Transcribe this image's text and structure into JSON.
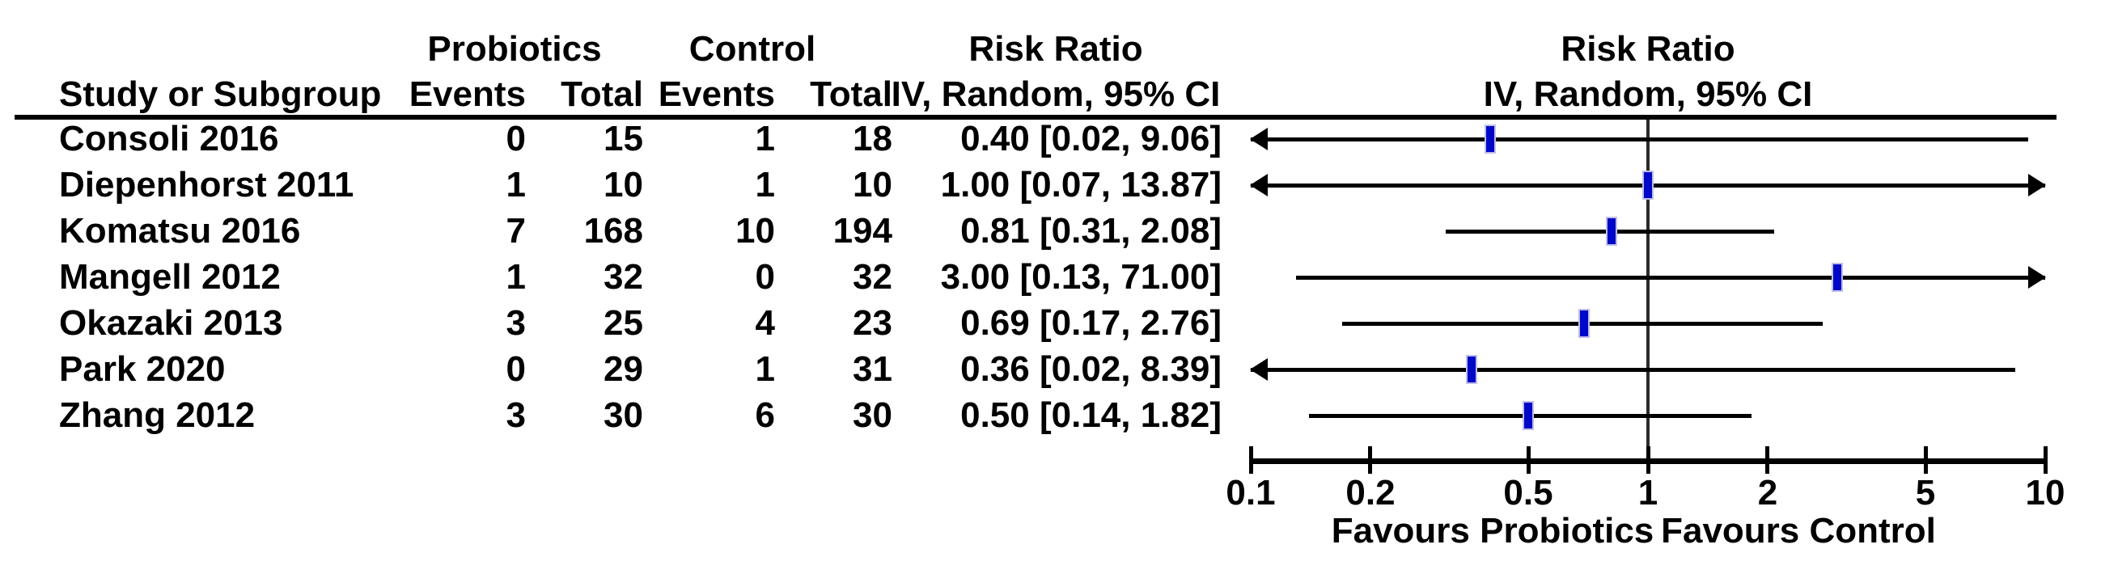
{
  "title_row": {
    "group1": "Probiotics",
    "group2": "Control",
    "risk_ratio": "Risk Ratio"
  },
  "header_row": {
    "study": "Study or Subgroup",
    "events": "Events",
    "total": "Total",
    "method": "IV, Random, 95% CI"
  },
  "chart_data": {
    "type": "forest",
    "effect_measure": "Risk Ratio",
    "model": "IV, Random, 95% CI",
    "x_axis": {
      "scale": "log",
      "min": 0.1,
      "max": 10,
      "ticks": [
        0.1,
        0.2,
        0.5,
        1,
        2,
        5,
        10
      ],
      "tick_labels": [
        "0.1",
        "0.2",
        "0.5",
        "1",
        "2",
        "5",
        "10"
      ]
    },
    "footer": {
      "favours_left": "Favours Probiotics",
      "favours_right": "Favours Control"
    },
    "studies": [
      {
        "study": "Consoli 2016",
        "probiotics_events": "0",
        "probiotics_total": "15",
        "control_events": "1",
        "control_total": "18",
        "rr": 0.4,
        "ci_low": 0.02,
        "ci_high": 9.06,
        "rr_label": "0.40 [0.02, 9.06]"
      },
      {
        "study": "Diepenhorst 2011",
        "probiotics_events": "1",
        "probiotics_total": "10",
        "control_events": "1",
        "control_total": "10",
        "rr": 1.0,
        "ci_low": 0.07,
        "ci_high": 13.87,
        "rr_label": "1.00 [0.07, 13.87]"
      },
      {
        "study": "Komatsu 2016",
        "probiotics_events": "7",
        "probiotics_total": "168",
        "control_events": "10",
        "control_total": "194",
        "rr": 0.81,
        "ci_low": 0.31,
        "ci_high": 2.08,
        "rr_label": "0.81 [0.31, 2.08]"
      },
      {
        "study": "Mangell 2012",
        "probiotics_events": "1",
        "probiotics_total": "32",
        "control_events": "0",
        "control_total": "32",
        "rr": 3.0,
        "ci_low": 0.13,
        "ci_high": 71.0,
        "rr_label": "3.00 [0.13, 71.00]"
      },
      {
        "study": "Okazaki 2013",
        "probiotics_events": "3",
        "probiotics_total": "25",
        "control_events": "4",
        "control_total": "23",
        "rr": 0.69,
        "ci_low": 0.17,
        "ci_high": 2.76,
        "rr_label": "0.69 [0.17, 2.76]"
      },
      {
        "study": "Park 2020",
        "probiotics_events": "0",
        "probiotics_total": "29",
        "control_events": "1",
        "control_total": "31",
        "rr": 0.36,
        "ci_low": 0.02,
        "ci_high": 8.39,
        "rr_label": "0.36 [0.02, 8.39]"
      },
      {
        "study": "Zhang 2012",
        "probiotics_events": "3",
        "probiotics_total": "30",
        "control_events": "6",
        "control_total": "30",
        "rr": 0.5,
        "ci_low": 0.14,
        "ci_high": 1.82,
        "rr_label": "0.50 [0.14, 1.82]"
      }
    ]
  },
  "colors": {
    "marker_fill": "#0008C8",
    "marker_border": "#BEBEE8",
    "line": "#000000"
  }
}
